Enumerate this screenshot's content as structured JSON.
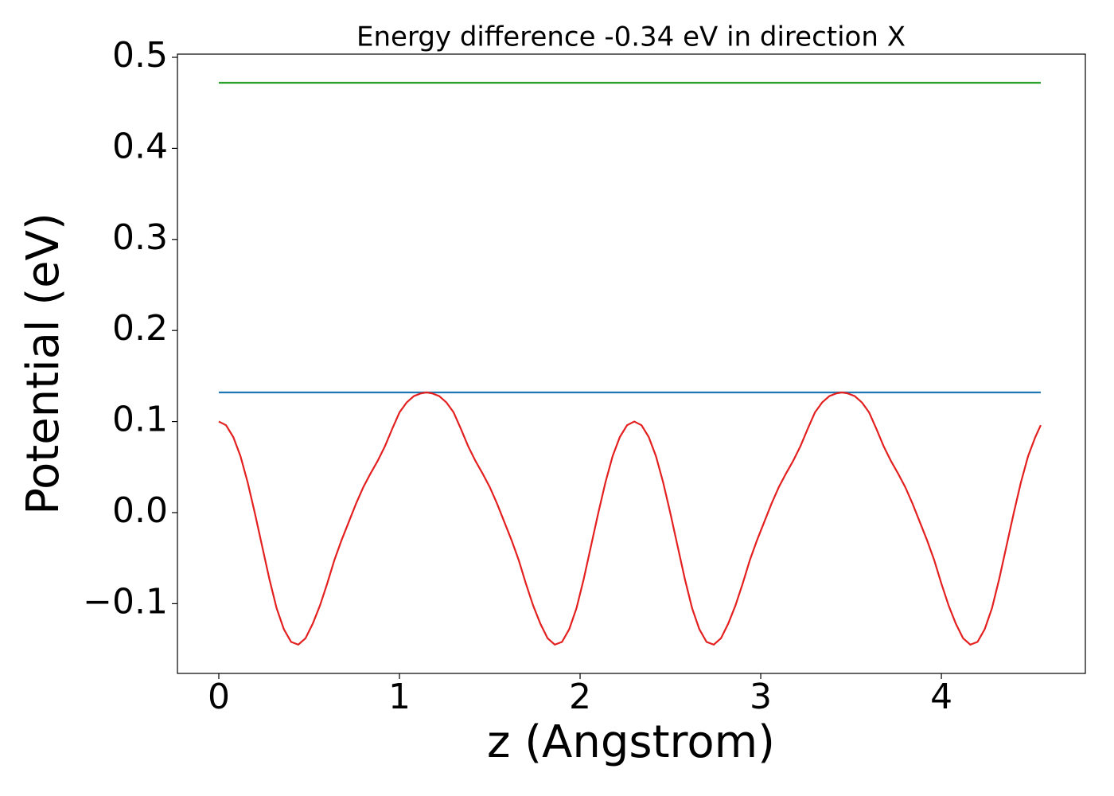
{
  "chart_data": {
    "type": "line",
    "title": "Energy difference -0.34 eV in direction X",
    "xlabel": "z (Angstrom)",
    "ylabel": "Potential (eV)",
    "xlim": [
      -0.229,
      4.797
    ],
    "ylim": [
      -0.1766,
      0.5035
    ],
    "xticks": [
      0,
      1,
      2,
      3,
      4
    ],
    "yticks": [
      {
        "value": -0.1,
        "label": "−0.1"
      },
      {
        "value": 0,
        "label": "0.0"
      },
      0.1,
      0.2,
      0.3,
      0.4,
      0.5
    ],
    "series": [
      {
        "color": "#2ca02c",
        "x": [
          0,
          4.55
        ],
        "values": [
          0.472,
          0.472
        ]
      },
      {
        "color": "#1f77b4",
        "x": [
          0,
          4.55
        ],
        "values": [
          0.132,
          0.132
        ]
      },
      {
        "color": "#e3201f",
        "x": [
          0,
          0.04,
          0.08,
          0.12,
          0.16,
          0.2,
          0.24,
          0.28,
          0.32,
          0.36,
          0.4,
          0.44,
          0.48,
          0.52,
          0.56,
          0.6,
          0.64,
          0.68,
          0.72,
          0.76,
          0.8,
          0.84,
          0.88,
          0.92,
          0.96,
          1.0,
          1.04,
          1.08,
          1.12,
          1.15,
          1.18,
          1.22,
          1.26,
          1.3,
          1.34,
          1.38,
          1.42,
          1.46,
          1.5,
          1.54,
          1.58,
          1.62,
          1.66,
          1.7,
          1.74,
          1.78,
          1.82,
          1.86,
          1.9,
          1.94,
          1.98,
          2.02,
          2.06,
          2.1,
          2.14,
          2.18,
          2.22,
          2.26,
          2.3,
          2.34,
          2.38,
          2.42,
          2.46,
          2.5,
          2.54,
          2.58,
          2.62,
          2.66,
          2.7,
          2.74,
          2.78,
          2.82,
          2.86,
          2.9,
          2.94,
          2.98,
          3.02,
          3.06,
          3.1,
          3.14,
          3.18,
          3.22,
          3.26,
          3.3,
          3.34,
          3.38,
          3.42,
          3.45,
          3.48,
          3.52,
          3.56,
          3.6,
          3.64,
          3.68,
          3.72,
          3.76,
          3.8,
          3.84,
          3.88,
          3.92,
          3.96,
          4.0,
          4.04,
          4.08,
          4.12,
          4.16,
          4.2,
          4.24,
          4.28,
          4.32,
          4.36,
          4.4,
          4.44,
          4.48,
          4.52,
          4.55
        ],
        "values": [
          0.1,
          0.096,
          0.083,
          0.062,
          0.033,
          -0.001,
          -0.037,
          -0.073,
          -0.105,
          -0.128,
          -0.142,
          -0.145,
          -0.138,
          -0.122,
          -0.102,
          -0.078,
          -0.052,
          -0.03,
          -0.01,
          0.01,
          0.028,
          0.043,
          0.057,
          0.073,
          0.092,
          0.11,
          0.121,
          0.128,
          0.131,
          0.132,
          0.131,
          0.128,
          0.121,
          0.11,
          0.092,
          0.073,
          0.057,
          0.043,
          0.028,
          0.01,
          -0.01,
          -0.03,
          -0.052,
          -0.078,
          -0.102,
          -0.122,
          -0.138,
          -0.145,
          -0.142,
          -0.128,
          -0.105,
          -0.073,
          -0.037,
          -0.001,
          0.033,
          0.062,
          0.083,
          0.096,
          0.1,
          0.096,
          0.083,
          0.062,
          0.033,
          -0.001,
          -0.037,
          -0.073,
          -0.105,
          -0.128,
          -0.142,
          -0.145,
          -0.138,
          -0.122,
          -0.102,
          -0.078,
          -0.052,
          -0.03,
          -0.01,
          0.01,
          0.028,
          0.043,
          0.057,
          0.073,
          0.092,
          0.11,
          0.121,
          0.128,
          0.131,
          0.132,
          0.131,
          0.128,
          0.121,
          0.11,
          0.092,
          0.073,
          0.057,
          0.043,
          0.028,
          0.01,
          -0.01,
          -0.03,
          -0.052,
          -0.078,
          -0.102,
          -0.122,
          -0.138,
          -0.145,
          -0.142,
          -0.128,
          -0.105,
          -0.073,
          -0.037,
          -0.001,
          0.033,
          0.062,
          0.083,
          0.096
        ]
      }
    ]
  }
}
